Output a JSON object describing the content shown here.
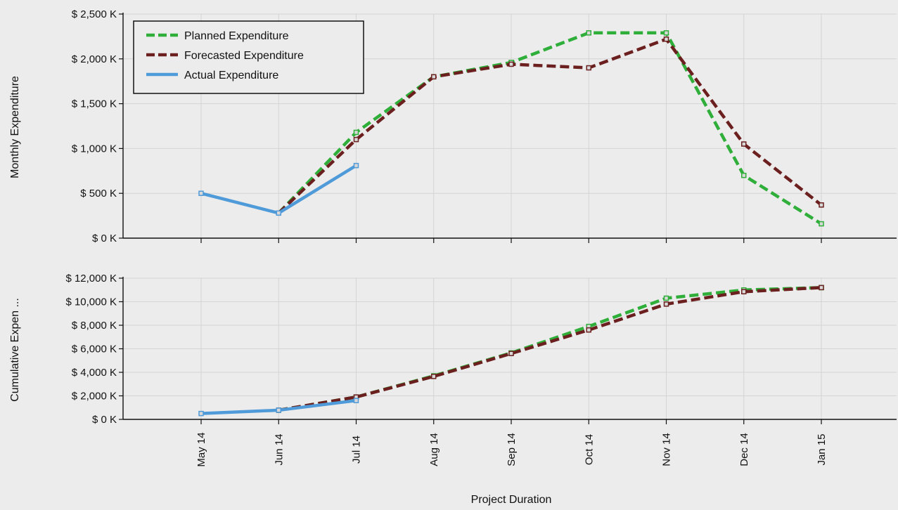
{
  "chart_data": [
    {
      "type": "line",
      "xlabel": "",
      "ylabel": "Monthly Expenditure",
      "ylim": [
        0,
        2500
      ],
      "y_ticks": [
        0,
        500,
        1000,
        1500,
        2000,
        2500
      ],
      "y_tick_labels": [
        "$ 0 K",
        "$ 500 K",
        "$ 1,000 K",
        "$ 1,500 K",
        "$ 2,000 K",
        "$ 2,500 K"
      ],
      "categories": [
        "May 14",
        "Jun 14",
        "Jul 14",
        "Aug 14",
        "Sep 14",
        "Oct 14",
        "Nov 14",
        "Dec 14",
        "Jan 15"
      ],
      "grid": true,
      "legend_position": "top-left",
      "series": [
        {
          "name": "Planned Expenditure",
          "color": "#2fae3a",
          "style": "dashed",
          "values": [
            null,
            280,
            1180,
            1800,
            1960,
            2290,
            2290,
            700,
            160
          ]
        },
        {
          "name": "Forecasted Expenditure",
          "color": "#6b1f1f",
          "style": "dashed",
          "values": [
            null,
            280,
            1100,
            1800,
            1940,
            1900,
            2220,
            1050,
            370
          ]
        },
        {
          "name": "Actual Expenditure",
          "color": "#4f9ad8",
          "style": "solid",
          "values": [
            500,
            280,
            810,
            null,
            null,
            null,
            null,
            null,
            null
          ]
        }
      ]
    },
    {
      "type": "line",
      "xlabel": "Project Duration",
      "ylabel": "Cumulative Expen ...",
      "ylim": [
        0,
        12000
      ],
      "y_ticks": [
        0,
        2000,
        4000,
        6000,
        8000,
        10000,
        12000
      ],
      "y_tick_labels": [
        "$ 0 K",
        "$ 2,000 K",
        "$ 4,000 K",
        "$ 6,000 K",
        "$ 8,000 K",
        "$ 10,000 K",
        "$ 12,000 K"
      ],
      "categories": [
        "May 14",
        "Jun 14",
        "Jul 14",
        "Aug 14",
        "Sep 14",
        "Oct 14",
        "Nov 14",
        "Dec 14",
        "Jan 15"
      ],
      "grid": true,
      "series": [
        {
          "name": "Planned Expenditure",
          "color": "#2fae3a",
          "style": "dashed",
          "values": [
            null,
            780,
            1900,
            3700,
            5650,
            7900,
            10300,
            11000,
            11200
          ]
        },
        {
          "name": "Forecasted Expenditure",
          "color": "#6b1f1f",
          "style": "dashed",
          "values": [
            null,
            780,
            1900,
            3650,
            5600,
            7600,
            9800,
            10850,
            11200
          ]
        },
        {
          "name": "Actual Expenditure",
          "color": "#4f9ad8",
          "style": "solid",
          "values": [
            500,
            780,
            1600,
            null,
            null,
            null,
            null,
            null,
            null
          ]
        }
      ]
    }
  ]
}
